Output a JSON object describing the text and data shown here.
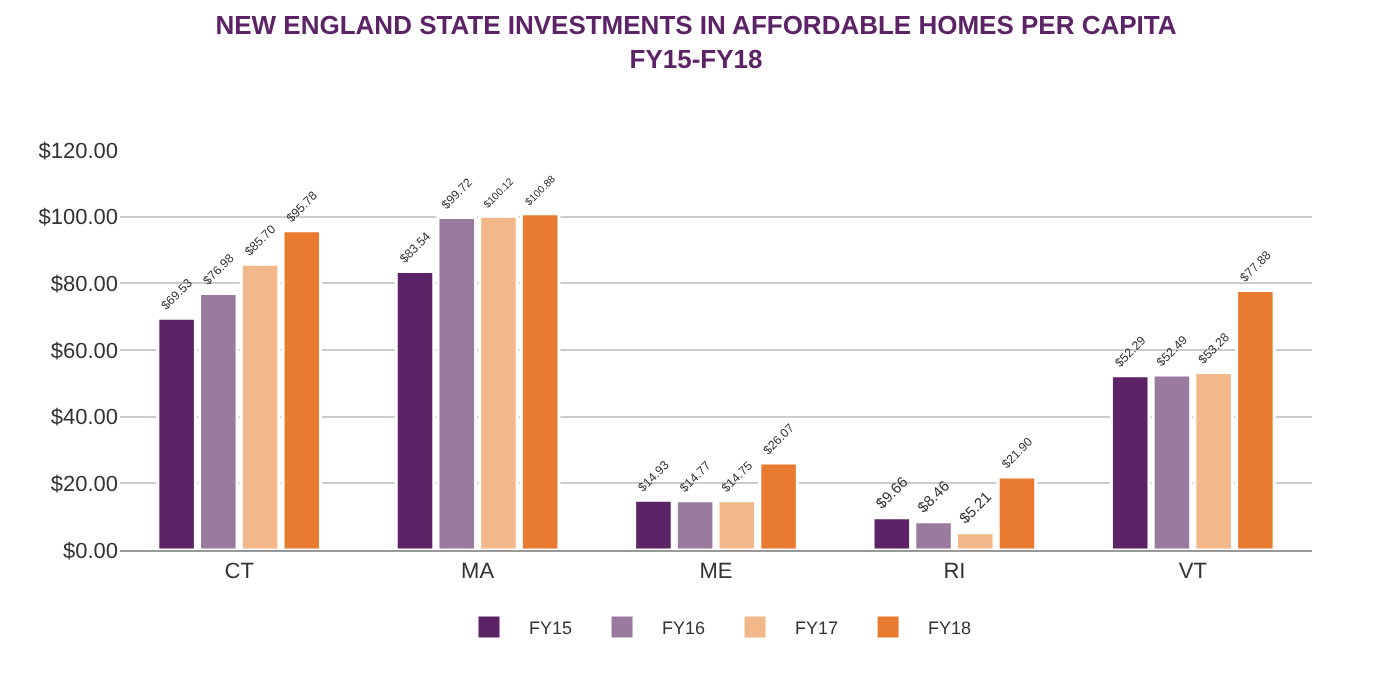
{
  "chart_data": {
    "type": "bar",
    "title": "NEW ENGLAND STATE INVESTMENTS IN AFFORDABLE HOMES PER CAPITA\nFY15-FY18",
    "categories": [
      "CT",
      "MA",
      "ME",
      "RI",
      "VT"
    ],
    "series": [
      {
        "name": "FY15",
        "color": "#5c2466",
        "values": [
          69.53,
          83.54,
          14.93,
          9.66,
          52.29
        ],
        "value_labels": [
          "$69.53",
          "$83.54",
          "$14.93",
          "$9.66",
          "$52.29"
        ]
      },
      {
        "name": "FY16",
        "color": "#9b7aa0",
        "values": [
          76.98,
          99.72,
          14.77,
          8.46,
          52.49
        ],
        "value_labels": [
          "$76.98",
          "$99.72",
          "$14.77",
          "$8.46",
          "$52.49"
        ]
      },
      {
        "name": "FY17",
        "color": "#f2b88a",
        "values": [
          85.7,
          100.12,
          14.75,
          5.21,
          53.28
        ],
        "value_labels": [
          "$85.70",
          "$100.12",
          "$14.75",
          "$5.21",
          "$53.28"
        ]
      },
      {
        "name": "FY18",
        "color": "#e87b30",
        "values": [
          95.78,
          100.88,
          26.07,
          21.9,
          77.88
        ],
        "value_labels": [
          "$95.78",
          "$100.88",
          "$26.07",
          "$21.90",
          "$77.88"
        ]
      }
    ],
    "ylim": [
      0,
      120
    ],
    "yticks": [
      {
        "value": 0,
        "label": "$0.00"
      },
      {
        "value": 20,
        "label": "$20.00"
      },
      {
        "value": 40,
        "label": "$40.00"
      },
      {
        "value": 60,
        "label": "$60.00"
      },
      {
        "value": 80,
        "label": "$80.00"
      },
      {
        "value": 100,
        "label": "$100.00"
      },
      {
        "value": 120,
        "label": "$120.00"
      }
    ],
    "grid": "y",
    "legend": "bottom"
  }
}
